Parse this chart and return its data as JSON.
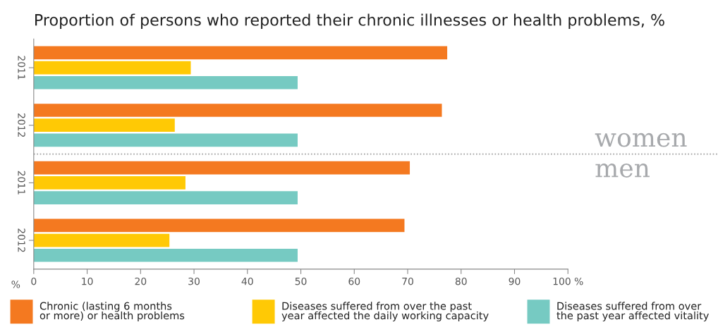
{
  "chart_data": {
    "type": "bar",
    "orientation": "horizontal",
    "title": "Proportion of persons who reported their chronic illnesses or health problems, %",
    "xlabel": "%",
    "categories": [
      "2011",
      "2012",
      "2011",
      "2012"
    ],
    "series": [
      {
        "name": "Chronic (lasting 6 months or more) or health problems",
        "color": "#f47920",
        "values": [
          77.4,
          76.4,
          70.4,
          69.4
        ]
      },
      {
        "name": "Diseases suffered from over the past year affected the daily working capacity",
        "color": "#ffc905",
        "values": [
          29.4,
          26.4,
          28.4,
          25.4
        ]
      },
      {
        "name": "Diseases suffered from over the past year affected vitality",
        "color": "#76cac2",
        "values": [
          49.4,
          49.4,
          49.4,
          49.4
        ]
      }
    ],
    "xlim": [
      0,
      100
    ],
    "xticks": [
      0,
      10,
      20,
      30,
      40,
      50,
      60,
      70,
      80,
      90,
      {
        "value": 100,
        "label": "100 %"
      }
    ],
    "annotations": [
      "women",
      "men"
    ],
    "grid": false,
    "legend": "bottom"
  }
}
